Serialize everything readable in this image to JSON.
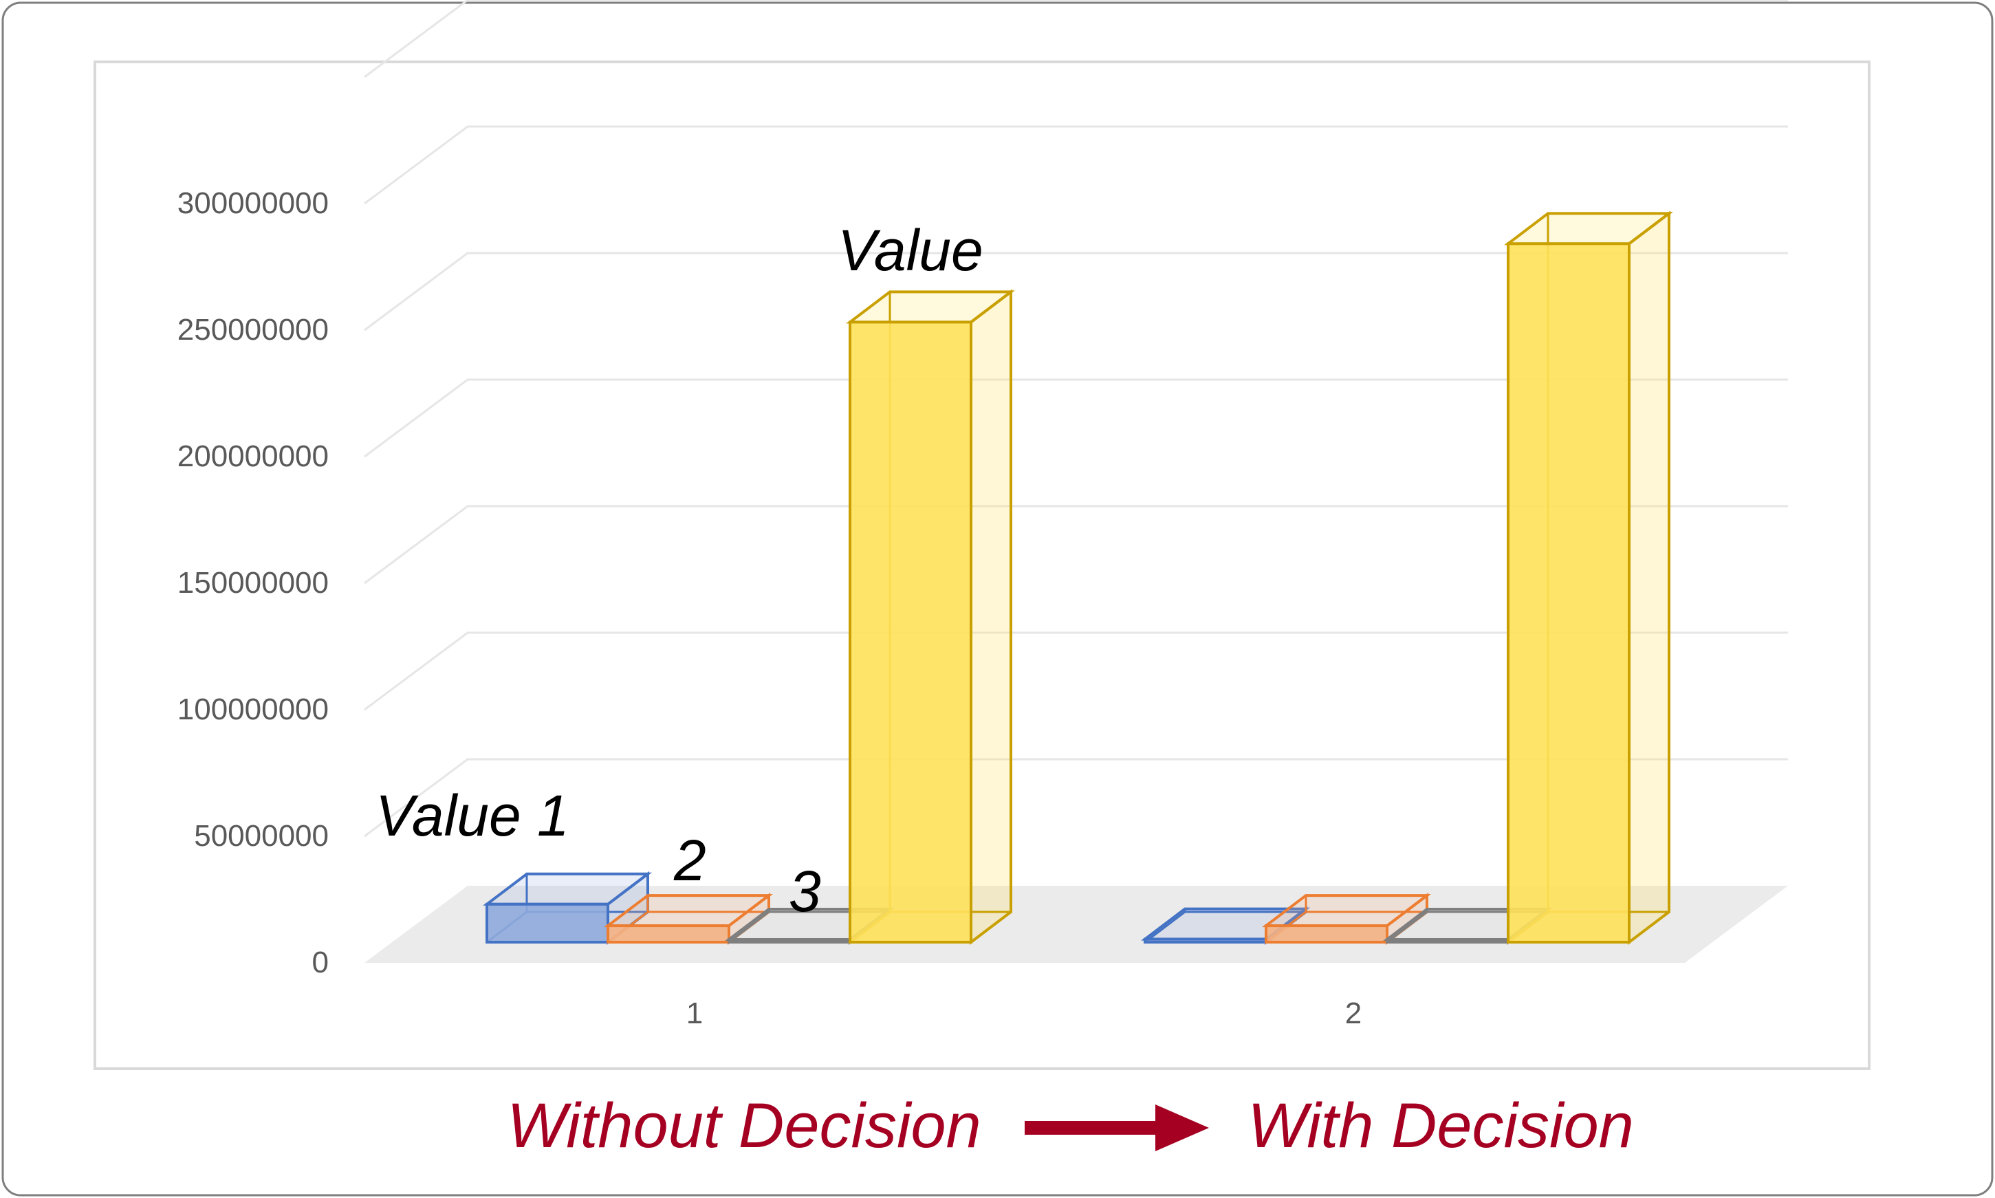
{
  "chart_data": {
    "type": "bar",
    "style": "3d-clustered-column",
    "categories": [
      "1",
      "2"
    ],
    "y_ticks": [
      "0",
      "50000000",
      "100000000",
      "150000000",
      "200000000",
      "250000000",
      "300000000"
    ],
    "ylim": [
      0,
      300000000
    ],
    "grid": true,
    "legend": "none",
    "series": [
      {
        "values": [
          15000000,
          1200000
        ],
        "color": "#4472C4",
        "fill": "#8FAADC"
      },
      {
        "values": [
          6500000,
          6500000
        ],
        "color": "#ED7D31",
        "fill": "#F4B183"
      },
      {
        "values": [
          0,
          0
        ],
        "color": "#7F7F7F",
        "fill": "#D9D9D9"
      },
      {
        "values": [
          245000000,
          276000000
        ],
        "color": "#C9A000",
        "fill": "#FFE15A"
      }
    ],
    "annotations": {
      "value1": "Value 1",
      "label2": "2",
      "label3": "3",
      "value": "Value"
    }
  },
  "caption": {
    "left": "Without Decision",
    "right": "With Decision",
    "color": "#A50021"
  }
}
